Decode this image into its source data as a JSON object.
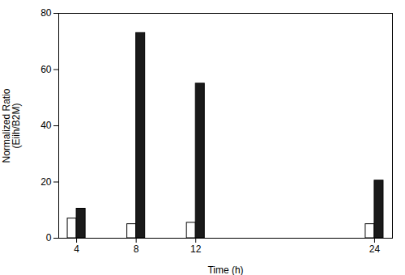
{
  "chart_data": {
    "type": "bar",
    "xlabel": "Time (h)",
    "ylabel": "Normalized Ratio\n(Eiih/B2M)",
    "x": [
      4,
      8,
      12,
      24
    ],
    "series": [
      {
        "color": "#ffffff",
        "values": [
          7.0,
          5.0,
          5.5,
          5.0
        ]
      },
      {
        "color": "#1a1a1a",
        "values": [
          10.5,
          73.0,
          55.0,
          20.5
        ]
      }
    ],
    "xlim": [
      2.8,
      25.2
    ],
    "xticks": [
      4,
      8,
      12,
      24
    ],
    "ylim": [
      0,
      80
    ],
    "yticks": [
      0,
      20,
      40,
      60,
      80
    ],
    "grid": false
  }
}
